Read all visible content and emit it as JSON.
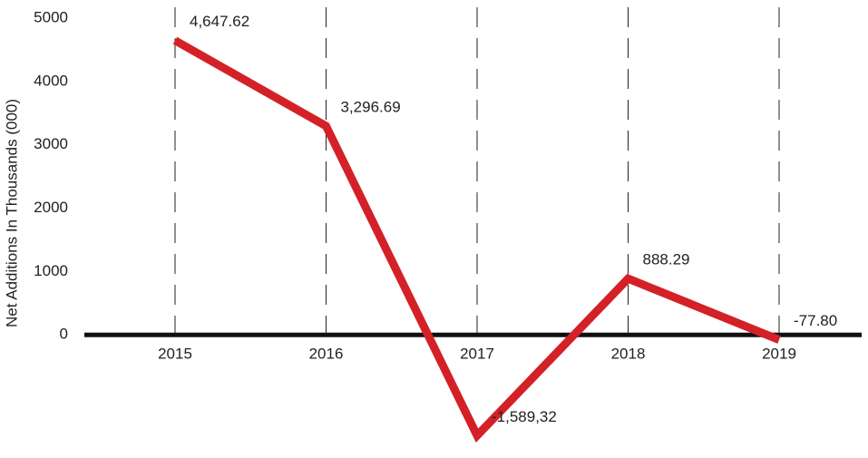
{
  "chart_data": {
    "type": "line",
    "y_label": "Net Additions In Thousands (000)",
    "categories": [
      "2015",
      "2016",
      "2017",
      "2018",
      "2019"
    ],
    "series": [
      {
        "name": "Net Additions",
        "color": "#d42027",
        "values": [
          4647.62,
          3296.69,
          -1589.32,
          888.29,
          -77.8
        ],
        "value_labels": [
          "4,647.62",
          "3,296.69",
          "-1,589,32",
          "888.29",
          "-77.80"
        ]
      }
    ],
    "ylim": [
      -1800,
      5000
    ],
    "yticks": [
      0,
      1000,
      2000,
      3000,
      4000,
      5000
    ],
    "grid": false
  }
}
